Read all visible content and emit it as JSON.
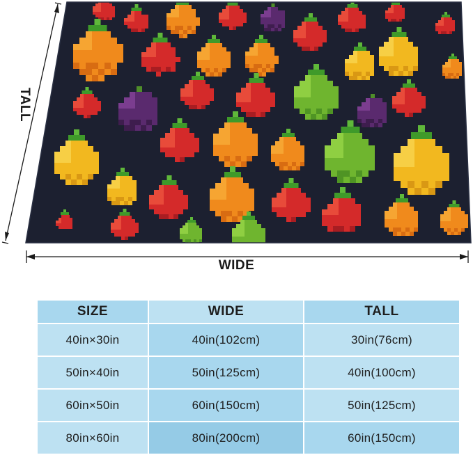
{
  "labels": {
    "wide": "WIDE",
    "tall": "TALL"
  },
  "size_table": {
    "headers": [
      "SIZE",
      "WIDE",
      "TALL"
    ],
    "rows": [
      [
        "40in×30in",
        "40in(102cm)",
        "30in(76cm)"
      ],
      [
        "50in×40in",
        "50in(125cm)",
        "40in(100cm)"
      ],
      [
        "60in×50in",
        "60in(150cm)",
        "50in(125cm)"
      ],
      [
        "80in×60in",
        "80in(200cm)",
        "60in(150cm)"
      ]
    ]
  },
  "colors": {
    "blanket_background": "#1c2030",
    "table_light": "#bde1f2",
    "table_mid": "#a8d7ee",
    "table_dark": "#95cbe6"
  }
}
